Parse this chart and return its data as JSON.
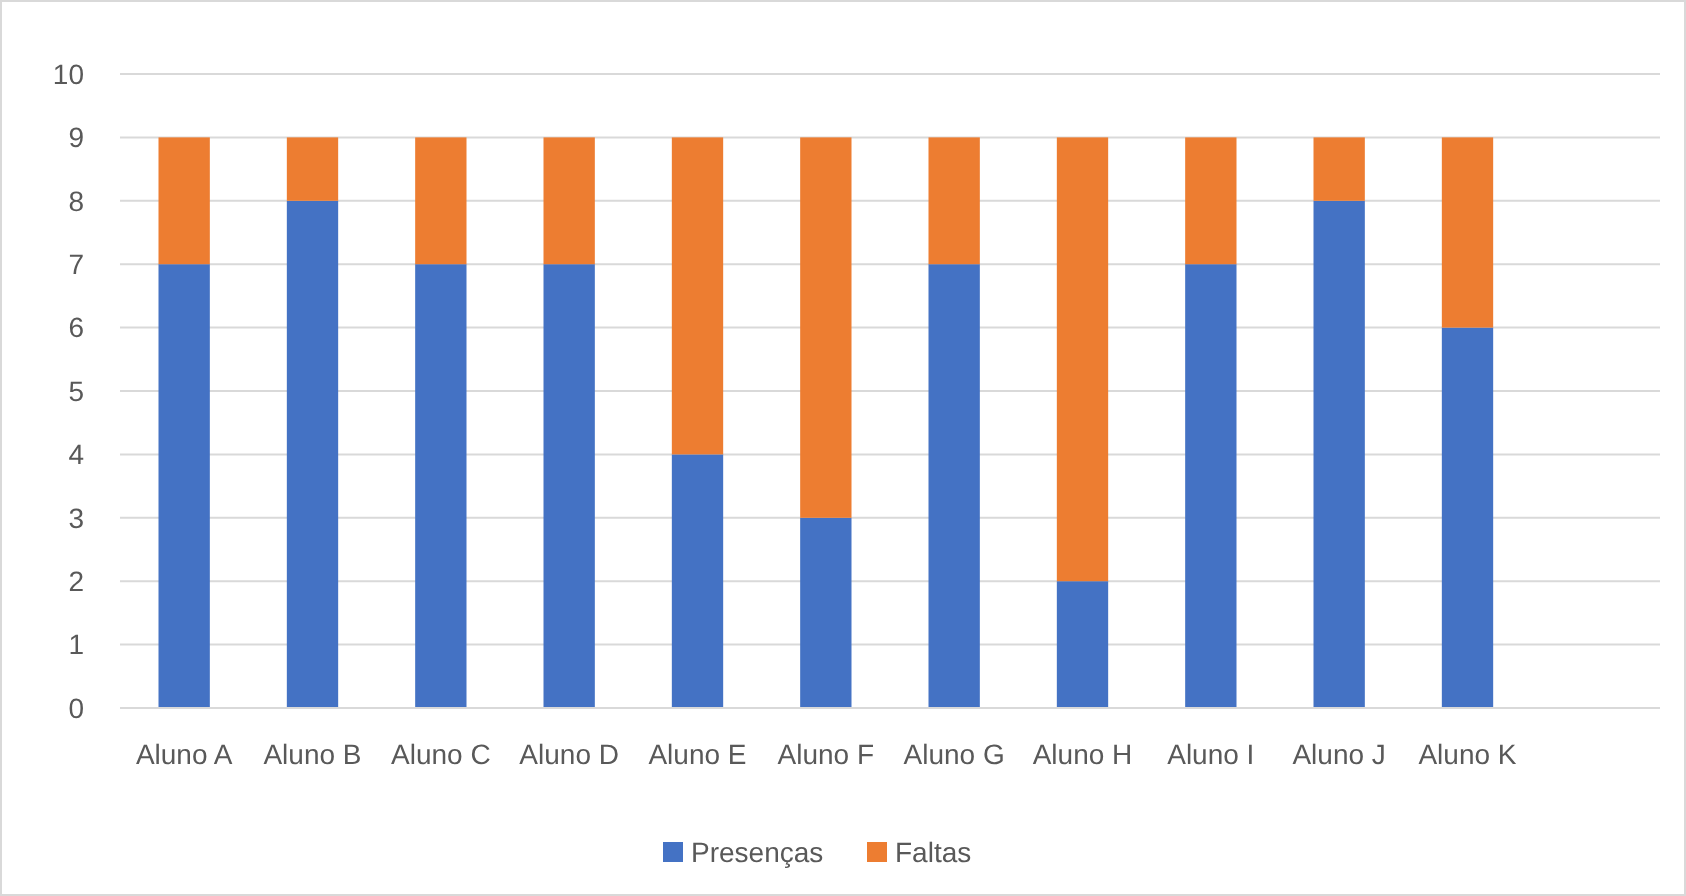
{
  "chart_data": {
    "type": "bar",
    "stacked": true,
    "categories": [
      "Aluno A",
      "Aluno B",
      "Aluno C",
      "Aluno D",
      "Aluno E",
      "Aluno F",
      "Aluno G",
      "Aluno H",
      "Aluno I",
      "Aluno J",
      "Aluno K",
      null
    ],
    "series": [
      {
        "name": "Presenças",
        "color": "#4472c4",
        "values": [
          7,
          8,
          7,
          7,
          4,
          3,
          7,
          2,
          7,
          8,
          6,
          null
        ]
      },
      {
        "name": "Faltas",
        "color": "#ed7d31",
        "values": [
          2,
          1,
          2,
          2,
          5,
          6,
          2,
          7,
          2,
          1,
          3,
          null
        ]
      }
    ],
    "ylim": [
      0,
      10
    ],
    "yticks": [
      0,
      1,
      2,
      3,
      4,
      5,
      6,
      7,
      8,
      9,
      10
    ],
    "grid": "y",
    "legend": "bottom"
  }
}
